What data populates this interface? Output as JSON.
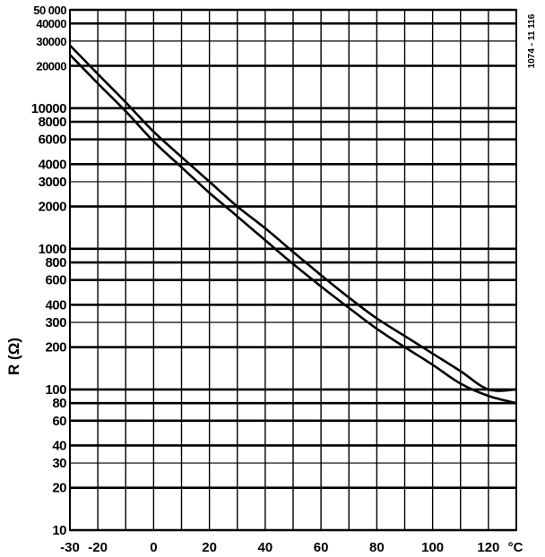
{
  "chart_data": {
    "type": "line",
    "ylabel": "R (Ω)",
    "xunit": "°C",
    "figure_code": "1074 - 11 116",
    "y_scale": "log",
    "xlim": [
      -30,
      130
    ],
    "ylim": [
      10,
      50000
    ],
    "grid": true,
    "x_ticks": [
      {
        "value": -30,
        "label": "-30"
      },
      {
        "value": -20,
        "label": "-20"
      },
      {
        "value": 0,
        "label": "0"
      },
      {
        "value": 20,
        "label": "20"
      },
      {
        "value": 40,
        "label": "40"
      },
      {
        "value": 60,
        "label": "60"
      },
      {
        "value": 80,
        "label": "80"
      },
      {
        "value": 100,
        "label": "100"
      },
      {
        "value": 120,
        "label": "120"
      }
    ],
    "y_ticks": [
      {
        "value": 50000,
        "label": "50 000",
        "major": true
      },
      {
        "value": 40000,
        "label": "40000",
        "major": true
      },
      {
        "value": 30000,
        "label": "30000",
        "major": false
      },
      {
        "value": 20000,
        "label": "20000",
        "major": true
      },
      {
        "value": 10000,
        "label": "10000",
        "major": true
      },
      {
        "value": 8000,
        "label": "8000",
        "major": true
      },
      {
        "value": 6000,
        "label": "6000",
        "major": true
      },
      {
        "value": 4000,
        "label": "4000",
        "major": true
      },
      {
        "value": 3000,
        "label": "3000",
        "major": false
      },
      {
        "value": 2000,
        "label": "2000",
        "major": true
      },
      {
        "value": 1000,
        "label": "1000",
        "major": true
      },
      {
        "value": 800,
        "label": "800",
        "major": true
      },
      {
        "value": 600,
        "label": "600",
        "major": true
      },
      {
        "value": 400,
        "label": "400",
        "major": true
      },
      {
        "value": 300,
        "label": "300",
        "major": false
      },
      {
        "value": 200,
        "label": "200",
        "major": true
      },
      {
        "value": 100,
        "label": "100",
        "major": true
      },
      {
        "value": 80,
        "label": "80",
        "major": true
      },
      {
        "value": 60,
        "label": "60",
        "major": true
      },
      {
        "value": 40,
        "label": "40",
        "major": true
      },
      {
        "value": 30,
        "label": "30",
        "major": false
      },
      {
        "value": 20,
        "label": "20",
        "major": true
      },
      {
        "value": 10,
        "label": "10",
        "major": true
      }
    ],
    "x_gridlines": [
      -30,
      -20,
      -10,
      0,
      10,
      20,
      30,
      40,
      50,
      60,
      70,
      80,
      90,
      100,
      110,
      120,
      130
    ],
    "series": [
      {
        "x": [
          -30,
          -20,
          -10,
          0,
          10,
          20,
          30,
          40,
          50,
          60,
          70,
          80,
          90,
          100,
          110,
          120,
          130
        ],
        "y": [
          28000,
          17500,
          11000,
          6800,
          4500,
          3000,
          2000,
          1400,
          950,
          650,
          450,
          320,
          240,
          180,
          135,
          100,
          100
        ]
      },
      {
        "x": [
          -30,
          -20,
          -10,
          0,
          10,
          20,
          30,
          40,
          50,
          60,
          70,
          80,
          90,
          100,
          110,
          120,
          130
        ],
        "y": [
          24000,
          15000,
          9500,
          5800,
          3800,
          2500,
          1700,
          1150,
          780,
          540,
          380,
          270,
          200,
          150,
          110,
          90,
          80
        ]
      }
    ]
  }
}
